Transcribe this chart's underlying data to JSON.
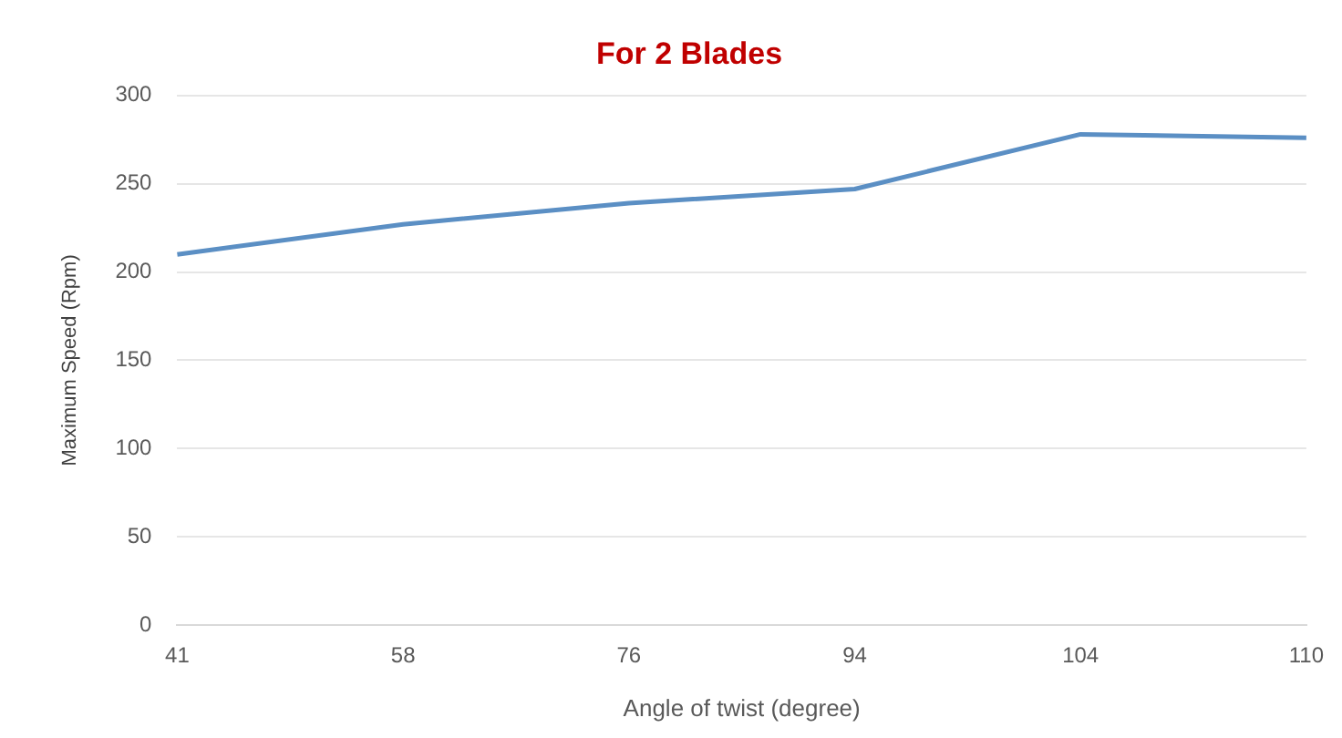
{
  "chart_data": {
    "type": "line",
    "title": "For 2 Blades",
    "xlabel": "Angle of twist (degree)",
    "ylabel": "Maximum Speed (Rpm)",
    "categories": [
      "41",
      "58",
      "76",
      "94",
      "104",
      "110"
    ],
    "series": [
      {
        "color": "#5b8fc4",
        "values": [
          210,
          227,
          239,
          247,
          278,
          276
        ]
      }
    ],
    "ylim": [
      0,
      300
    ],
    "yticks": [
      0,
      50,
      100,
      150,
      200,
      250,
      300
    ],
    "grid": "y",
    "marker": "none"
  }
}
